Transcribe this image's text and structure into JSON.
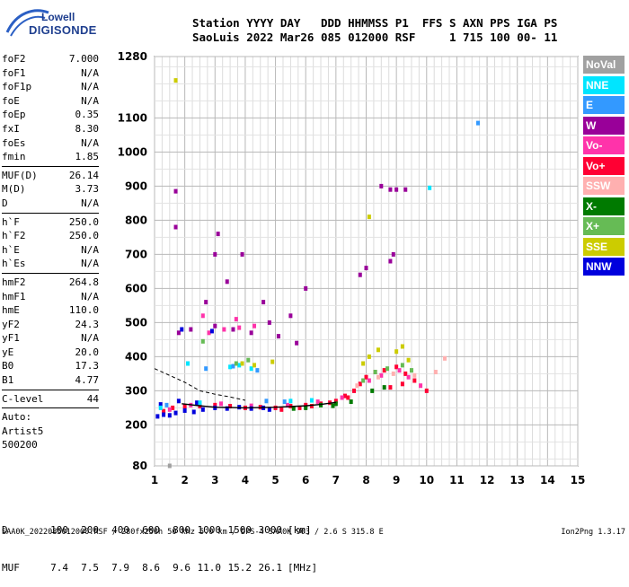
{
  "logo": {
    "top": "Lowell",
    "bottom": "DIGISONDE"
  },
  "header": {
    "line1": "Station YYYY DAY   DDD HHMMSS P1  FFS S AXN PPS IGA PS",
    "line2": "SaoLuis 2022 Mar26 085 012000 RSF     1 715 100 00- 11"
  },
  "params": {
    "group1": [
      {
        "name": "foF2",
        "value": "7.000"
      },
      {
        "name": "foF1",
        "value": "N/A"
      },
      {
        "name": "foF1p",
        "value": "N/A"
      },
      {
        "name": "foE",
        "value": "N/A"
      },
      {
        "name": "foEp",
        "value": "0.35"
      },
      {
        "name": "fxI",
        "value": "8.30"
      },
      {
        "name": "foEs",
        "value": "N/A"
      },
      {
        "name": "fmin",
        "value": "1.85"
      }
    ],
    "group2": [
      {
        "name": "MUF(D)",
        "value": "26.14"
      },
      {
        "name": "M(D)",
        "value": "3.73"
      },
      {
        "name": "D",
        "value": "N/A"
      }
    ],
    "group3": [
      {
        "name": "h`F",
        "value": "250.0"
      },
      {
        "name": "h`F2",
        "value": "250.0"
      },
      {
        "name": "h`E",
        "value": "N/A"
      },
      {
        "name": "h`Es",
        "value": "N/A"
      }
    ],
    "group4": [
      {
        "name": "hmF2",
        "value": "264.8"
      },
      {
        "name": "hmF1",
        "value": "N/A"
      },
      {
        "name": "hmE",
        "value": "110.0"
      },
      {
        "name": "yF2",
        "value": "24.3"
      },
      {
        "name": "yF1",
        "value": "N/A"
      },
      {
        "name": "yE",
        "value": "20.0"
      },
      {
        "name": "B0",
        "value": "17.3"
      },
      {
        "name": "B1",
        "value": "4.77"
      }
    ],
    "group5": [
      {
        "name": "C-level",
        "value": "44"
      }
    ],
    "auto": [
      "Auto:",
      "Artist5",
      "500200"
    ]
  },
  "dmuf": {
    "d_label": "D",
    "d_values": [
      "100",
      "200",
      "400",
      "600",
      "800",
      "1000",
      "1500",
      "3000"
    ],
    "d_unit": "[km]",
    "muf_label": "MUF",
    "muf_values": [
      "7.4",
      "7.5",
      "7.9",
      "8.6",
      "9.6",
      "11.0",
      "15.2",
      "26.1"
    ],
    "muf_unit": "[MHz]"
  },
  "footer": {
    "left": "SAA0K_2022085012000.RSF / 280fx256h 50 kHz 5.0 km / DPS-4 SAA0K 903 / 2.6 S 315.8 E",
    "right": "Ion2Png 1.3.17"
  },
  "legend": [
    {
      "label": "NoVal",
      "color": "#a0a0a0"
    },
    {
      "label": "NNE",
      "color": "#00e5ff"
    },
    {
      "label": "E",
      "color": "#3399ff"
    },
    {
      "label": "W",
      "color": "#990099"
    },
    {
      "label": "Vo-",
      "color": "#ff33aa"
    },
    {
      "label": "Vo+",
      "color": "#ff0033"
    },
    {
      "label": "SSW",
      "color": "#ffb0b0"
    },
    {
      "label": "X-",
      "color": "#007a00"
    },
    {
      "label": "X+",
      "color": "#66bb55"
    },
    {
      "label": "SSE",
      "color": "#cccc00"
    },
    {
      "label": "NNW",
      "color": "#0000dd"
    }
  ],
  "chart_data": {
    "type": "scatter",
    "x_range": [
      1,
      15
    ],
    "y_range": [
      80,
      1280
    ],
    "x_ticks": [
      1,
      2,
      3,
      4,
      5,
      6,
      7,
      8,
      9,
      10,
      11,
      12,
      13,
      14,
      15
    ],
    "y_ticks": [
      80,
      200,
      300,
      400,
      500,
      600,
      700,
      800,
      900,
      1000,
      1100,
      1280
    ],
    "grid": true,
    "legend_position": "right",
    "trace_lines": {
      "profile_solid": [
        [
          1.9,
          262
        ],
        [
          2.5,
          256
        ],
        [
          3,
          252
        ],
        [
          4,
          250
        ],
        [
          5,
          252
        ],
        [
          6,
          256
        ],
        [
          6.5,
          260
        ],
        [
          7,
          266
        ]
      ],
      "profile_dashed": [
        [
          1,
          365
        ],
        [
          1.5,
          345
        ],
        [
          2,
          325
        ],
        [
          2.5,
          300
        ],
        [
          3,
          290
        ],
        [
          3.5,
          282
        ],
        [
          4,
          272
        ]
      ]
    },
    "series": [
      {
        "mode": "Vo+",
        "points": [
          [
            1.3,
            240
          ],
          [
            1.6,
            250
          ],
          [
            2,
            255
          ],
          [
            2.5,
            255
          ],
          [
            3,
            258
          ],
          [
            3.5,
            255
          ],
          [
            4,
            250
          ],
          [
            4.5,
            252
          ],
          [
            5,
            250
          ],
          [
            5.5,
            255
          ],
          [
            6,
            258
          ],
          [
            6.5,
            262
          ],
          [
            7,
            270
          ],
          [
            7.3,
            285
          ],
          [
            7.6,
            300
          ],
          [
            7.8,
            320
          ],
          [
            8,
            340
          ],
          [
            8.3,
            355
          ],
          [
            8.6,
            360
          ],
          [
            9,
            370
          ],
          [
            9.3,
            350
          ],
          [
            9.6,
            330
          ],
          [
            5.2,
            245
          ],
          [
            5.8,
            250
          ],
          [
            6.2,
            255
          ],
          [
            6.8,
            265
          ],
          [
            7.4,
            280
          ],
          [
            8.8,
            310
          ],
          [
            9.2,
            320
          ],
          [
            10,
            300
          ]
        ]
      },
      {
        "mode": "Vo-",
        "points": [
          [
            1.5,
            245
          ],
          [
            2.2,
            258
          ],
          [
            3.2,
            262
          ],
          [
            4.2,
            256
          ],
          [
            5.4,
            258
          ],
          [
            6.4,
            268
          ],
          [
            7.2,
            280
          ],
          [
            8.1,
            330
          ],
          [
            8.5,
            345
          ],
          [
            9.1,
            360
          ],
          [
            9.4,
            340
          ],
          [
            9.8,
            315
          ],
          [
            2.8,
            470
          ],
          [
            3.3,
            480
          ],
          [
            3.8,
            485
          ],
          [
            4.3,
            490
          ],
          [
            2.6,
            520
          ],
          [
            3.7,
            510
          ]
        ]
      },
      {
        "mode": "W",
        "points": [
          [
            1.8,
            470
          ],
          [
            2.2,
            480
          ],
          [
            3,
            490
          ],
          [
            3.6,
            480
          ],
          [
            4.2,
            470
          ],
          [
            4.8,
            500
          ],
          [
            5.5,
            520
          ],
          [
            6,
            600
          ],
          [
            7.8,
            640
          ],
          [
            8,
            660
          ],
          [
            8.8,
            680
          ],
          [
            8.9,
            700
          ],
          [
            2.7,
            560
          ],
          [
            3.4,
            620
          ],
          [
            3.9,
            700
          ],
          [
            4.6,
            560
          ],
          [
            5.1,
            460
          ],
          [
            5.7,
            440
          ],
          [
            1.7,
            885
          ],
          [
            1.7,
            780
          ],
          [
            8.5,
            900
          ],
          [
            8.8,
            890
          ],
          [
            9,
            890
          ],
          [
            9.3,
            890
          ],
          [
            3,
            700
          ],
          [
            3.1,
            760
          ]
        ]
      },
      {
        "mode": "NNW",
        "points": [
          [
            1.1,
            225
          ],
          [
            1.3,
            230
          ],
          [
            1.5,
            228
          ],
          [
            1.7,
            235
          ],
          [
            2,
            242
          ],
          [
            2.3,
            238
          ],
          [
            2.6,
            245
          ],
          [
            3,
            250
          ],
          [
            3.4,
            248
          ],
          [
            3.8,
            252
          ],
          [
            4.2,
            248
          ],
          [
            4.6,
            250
          ],
          [
            1.2,
            260
          ],
          [
            1.8,
            270
          ],
          [
            2.4,
            265
          ],
          [
            4.8,
            245
          ],
          [
            1.9,
            480
          ],
          [
            2.9,
            475
          ]
        ]
      },
      {
        "mode": "NNE",
        "points": [
          [
            1.2,
            250
          ],
          [
            2.5,
            265
          ],
          [
            3.5,
            370
          ],
          [
            3.8,
            375
          ],
          [
            4.2,
            365
          ],
          [
            5.5,
            270
          ],
          [
            6.2,
            272
          ],
          [
            2.1,
            380
          ],
          [
            10.1,
            895
          ]
        ]
      },
      {
        "mode": "E",
        "points": [
          [
            1.4,
            258
          ],
          [
            2.7,
            365
          ],
          [
            3.6,
            372
          ],
          [
            4.4,
            360
          ],
          [
            5.3,
            268
          ],
          [
            11.7,
            1085
          ],
          [
            4.7,
            270
          ]
        ]
      },
      {
        "mode": "X-",
        "points": [
          [
            6,
            250
          ],
          [
            6.5,
            258
          ],
          [
            7,
            262
          ],
          [
            7.5,
            268
          ],
          [
            5.6,
            248
          ],
          [
            6.9,
            256
          ],
          [
            8.2,
            300
          ],
          [
            8.6,
            310
          ]
        ]
      },
      {
        "mode": "X+",
        "points": [
          [
            7.9,
            330
          ],
          [
            8.3,
            355
          ],
          [
            8.7,
            365
          ],
          [
            9.2,
            375
          ],
          [
            9.5,
            360
          ],
          [
            3.7,
            380
          ],
          [
            4.1,
            390
          ],
          [
            2.6,
            445
          ]
        ]
      },
      {
        "mode": "SSE",
        "points": [
          [
            1.7,
            1210
          ],
          [
            3.9,
            380
          ],
          [
            4.3,
            375
          ],
          [
            4.9,
            385
          ],
          [
            7.9,
            380
          ],
          [
            8.1,
            400
          ],
          [
            8.4,
            420
          ],
          [
            9,
            415
          ],
          [
            9.2,
            430
          ],
          [
            9.4,
            390
          ],
          [
            8.1,
            810
          ]
        ]
      },
      {
        "mode": "SSW",
        "points": [
          [
            7.7,
            315
          ],
          [
            8.4,
            340
          ],
          [
            8.9,
            350
          ],
          [
            9.6,
            345
          ],
          [
            10.3,
            355
          ],
          [
            10.6,
            395
          ]
        ]
      },
      {
        "mode": "NoVal",
        "points": [
          [
            1.5,
            80
          ]
        ]
      }
    ]
  }
}
